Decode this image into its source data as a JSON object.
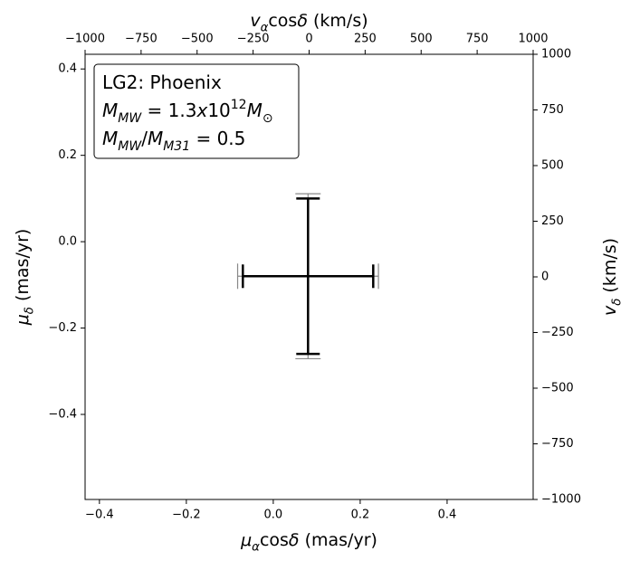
{
  "chart_data": {
    "type": "errorbar",
    "xlabel": [
      {
        "i": "μ"
      },
      {
        "sub": "α"
      },
      {
        "t": "cos"
      },
      {
        "i": "δ"
      },
      {
        "t": " (mas/yr)"
      }
    ],
    "ylabel": [
      {
        "i": "μ"
      },
      {
        "sub": "δ"
      },
      {
        "t": " (mas/yr)"
      }
    ],
    "x2label": [
      {
        "i": "v"
      },
      {
        "sub": "α"
      },
      {
        "t": "cos"
      },
      {
        "i": "δ"
      },
      {
        "t": " (km/s)"
      }
    ],
    "y2label": [
      {
        "i": "v"
      },
      {
        "sub": "δ"
      },
      {
        "t": " (km/s)"
      }
    ],
    "xlim": [
      -0.433,
      0.598
    ],
    "ylim": [
      -0.597,
      0.434
    ],
    "x2lim": [
      -1000,
      1000
    ],
    "y2lim": [
      -1000,
      1000
    ],
    "xticks": [
      {
        "value": -0.4,
        "label": "−0.4"
      },
      {
        "value": -0.2,
        "label": "−0.2"
      },
      {
        "value": 0,
        "label": "0.0"
      },
      0.2,
      0.4
    ],
    "yticks": [
      {
        "value": -0.4,
        "label": "−0.4"
      },
      {
        "value": -0.2,
        "label": "−0.2"
      },
      {
        "value": 0,
        "label": "0.0"
      },
      0.2,
      0.4
    ],
    "x2ticks": [
      {
        "value": -1000,
        "label": "−1000"
      },
      {
        "value": -750,
        "label": "−750"
      },
      {
        "value": -500,
        "label": "−500"
      },
      {
        "value": -250,
        "label": "−250"
      },
      0,
      250,
      500,
      750,
      1000
    ],
    "y2ticks": [
      {
        "value": -1000,
        "label": "−1000"
      },
      {
        "value": -750,
        "label": "−750"
      },
      {
        "value": -500,
        "label": "−500"
      },
      {
        "value": -250,
        "label": "−250"
      },
      0,
      250,
      500,
      750,
      1000
    ],
    "annotation": [
      [
        {
          "t": "LG2: Phoenix"
        }
      ],
      [
        {
          "i": "M"
        },
        {
          "sub": "MW"
        },
        {
          "t": " = 1.3"
        },
        {
          "i": "x"
        },
        {
          "t": "10"
        },
        {
          "sup": "12"
        },
        {
          "i": "M"
        },
        {
          "sub": "⊙"
        }
      ],
      [
        {
          "i": "M"
        },
        {
          "sub": "MW"
        },
        {
          "t": "/"
        },
        {
          "i": "M"
        },
        {
          "sub": "M31"
        },
        {
          "t": " = 0.5"
        }
      ]
    ],
    "series": [
      {
        "color": "#888888",
        "x": [
          0.08
        ],
        "y": [
          -0.08
        ],
        "xerr": [
          0.162
        ],
        "yerr": [
          0.191
        ],
        "width": 1.2
      },
      {
        "color": "#000000",
        "x": [
          0.08
        ],
        "y": [
          -0.08
        ],
        "xerr": [
          0.15
        ],
        "yerr": [
          0.18
        ],
        "width": 2.5
      }
    ]
  }
}
